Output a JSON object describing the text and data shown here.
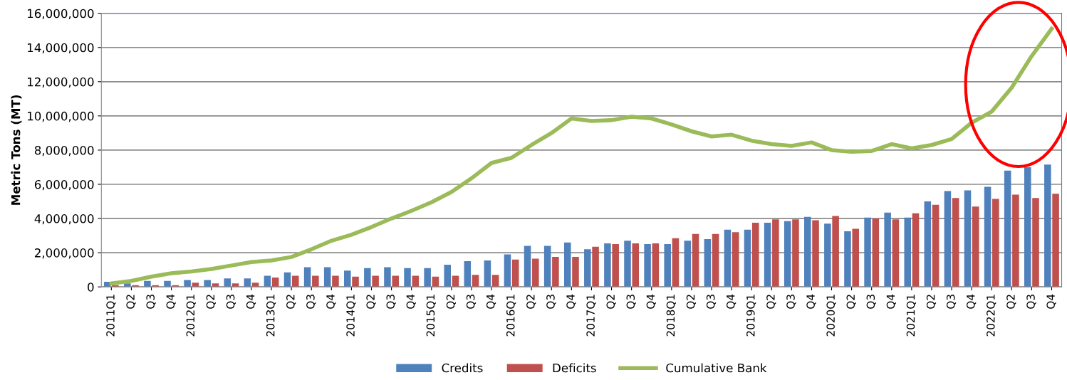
{
  "chart_data": {
    "type": "bar",
    "ylabel": "Metric Tons (MT)",
    "categories": [
      "2011Q1",
      "Q2",
      "Q3",
      "Q4",
      "2012Q1",
      "Q2",
      "Q3",
      "Q4",
      "2013Q1",
      "Q2",
      "Q3",
      "Q4",
      "2014Q1",
      "Q2",
      "Q3",
      "Q4",
      "2015Q1",
      "Q2",
      "Q3",
      "Q4",
      "2016Q1",
      "Q2",
      "Q3",
      "Q4",
      "2017Q1",
      "Q2",
      "Q3",
      "Q4",
      "2018Q1",
      "Q2",
      "Q3",
      "Q4",
      "2019Q1",
      "Q2",
      "Q3",
      "Q4",
      "2020Q1",
      "Q2",
      "Q3",
      "Q4",
      "2021Q1",
      "Q2",
      "Q3",
      "Q4",
      "2022Q1",
      "Q2",
      "Q3",
      "Q4"
    ],
    "series": [
      {
        "name": "Credits",
        "color": "#4f81bd",
        "values": [
          300000,
          200000,
          350000,
          350000,
          400000,
          400000,
          500000,
          500000,
          650000,
          850000,
          1150000,
          1150000,
          950000,
          1100000,
          1150000,
          1100000,
          1100000,
          1300000,
          1500000,
          1550000,
          1900000,
          2400000,
          2400000,
          2600000,
          2200000,
          2550000,
          2700000,
          2500000,
          2500000,
          2700000,
          2800000,
          3350000,
          3350000,
          3750000,
          3850000,
          4100000,
          3700000,
          3250000,
          4050000,
          4350000,
          4050000,
          5000000,
          5600000,
          5650000,
          5850000,
          6800000,
          7000000,
          7150000
        ]
      },
      {
        "name": "Deficits",
        "color": "#c0504d",
        "values": [
          100000,
          100000,
          100000,
          100000,
          250000,
          200000,
          200000,
          250000,
          550000,
          650000,
          650000,
          650000,
          600000,
          650000,
          650000,
          650000,
          600000,
          650000,
          700000,
          700000,
          1600000,
          1650000,
          1750000,
          1750000,
          2350000,
          2500000,
          2550000,
          2550000,
          2850000,
          3100000,
          3100000,
          3200000,
          3750000,
          3950000,
          3950000,
          3900000,
          4150000,
          3400000,
          4000000,
          3950000,
          4300000,
          4800000,
          5200000,
          4700000,
          5150000,
          5400000,
          5200000,
          5450000
        ]
      },
      {
        "name": "Cumulative Bank",
        "type": "line",
        "color": "#9bbb59",
        "values": [
          200000,
          350000,
          600000,
          800000,
          900000,
          1050000,
          1250000,
          1450000,
          1550000,
          1750000,
          2200000,
          2700000,
          3050000,
          3500000,
          4000000,
          4450000,
          4950000,
          5550000,
          6350000,
          7250000,
          7550000,
          8300000,
          9000000,
          9850000,
          9700000,
          9750000,
          9950000,
          9850000,
          9500000,
          9100000,
          8800000,
          8900000,
          8550000,
          8350000,
          8250000,
          8450000,
          8000000,
          7900000,
          7950000,
          8350000,
          8100000,
          8300000,
          8650000,
          9600000,
          10250000,
          11650000,
          13500000,
          15100000
        ]
      }
    ],
    "ylim": [
      0,
      16000000
    ],
    "yticks": [
      {
        "value": 0,
        "label": "0"
      },
      {
        "value": 2000000,
        "label": "2,000,000"
      },
      {
        "value": 4000000,
        "label": "4,000,000"
      },
      {
        "value": 6000000,
        "label": "6,000,000"
      },
      {
        "value": 8000000,
        "label": "8,000,000"
      },
      {
        "value": 10000000,
        "label": "10,000,000"
      },
      {
        "value": 12000000,
        "label": "12,000,000"
      },
      {
        "value": 14000000,
        "label": "14,000,000"
      },
      {
        "value": 16000000,
        "label": "16,000,000"
      }
    ],
    "grid": "y",
    "legend": "bottom",
    "marker": "none",
    "line_style": "solid"
  }
}
